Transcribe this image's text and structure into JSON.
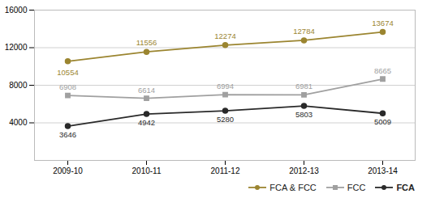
{
  "chart_data": {
    "type": "line",
    "categories": [
      "2009-10",
      "2010-11",
      "2011-12",
      "2012-13",
      "2013-14"
    ],
    "series": [
      {
        "name": "FCA & FCC",
        "color": "#9b8530",
        "marker": "circle",
        "values": [
          10554,
          11556,
          12274,
          12784,
          13674
        ]
      },
      {
        "name": "FCC",
        "color": "#a0a0a0",
        "marker": "square",
        "values": [
          6908,
          6614,
          6994,
          6981,
          8665
        ]
      },
      {
        "name": "FCA",
        "color": "#2a2a2a",
        "marker": "circle",
        "values": [
          3646,
          4942,
          5280,
          5803,
          5009
        ]
      }
    ],
    "ylim": [
      0,
      16000
    ],
    "yticks": [
      4000,
      8000,
      12000,
      16000
    ],
    "grid": true,
    "legend": "lower right",
    "data_labels": true
  }
}
